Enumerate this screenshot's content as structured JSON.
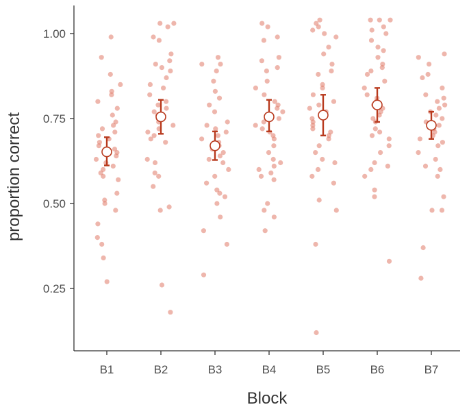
{
  "chart_data": {
    "type": "scatter",
    "xlabel": "Block",
    "ylabel": "proportion correct",
    "categories": [
      "B1",
      "B2",
      "B3",
      "B4",
      "B5",
      "B6",
      "B7"
    ],
    "yticks": [
      "0.25",
      "0.50",
      "0.75",
      "1.00"
    ],
    "ytick_values": [
      0.25,
      0.5,
      0.75,
      1.0
    ],
    "ylim": [
      0.1,
      1.08
    ],
    "grid": false,
    "point_color": "#e07a68",
    "error_color": "#b83a1e",
    "mean_fill": "#ffffff",
    "summary": [
      {
        "category": "B1",
        "mean": 0.652,
        "lower": 0.612,
        "upper": 0.695
      },
      {
        "category": "B2",
        "mean": 0.755,
        "lower": 0.705,
        "upper": 0.805
      },
      {
        "category": "B3",
        "mean": 0.67,
        "lower": 0.628,
        "upper": 0.712
      },
      {
        "category": "B4",
        "mean": 0.755,
        "lower": 0.712,
        "upper": 0.805
      },
      {
        "category": "B5",
        "mean": 0.76,
        "lower": 0.7,
        "upper": 0.82
      },
      {
        "category": "B6",
        "mean": 0.79,
        "lower": 0.74,
        "upper": 0.84
      },
      {
        "category": "B7",
        "mean": 0.73,
        "lower": 0.69,
        "upper": 0.77
      }
    ],
    "points": {
      "B1": [
        0.99,
        0.93,
        0.88,
        0.85,
        0.83,
        0.82,
        0.8,
        0.78,
        0.76,
        0.74,
        0.73,
        0.72,
        0.71,
        0.7,
        0.69,
        0.68,
        0.67,
        0.66,
        0.65,
        0.64,
        0.63,
        0.62,
        0.61,
        0.6,
        0.59,
        0.58,
        0.57,
        0.53,
        0.51,
        0.5,
        0.48,
        0.44,
        0.4,
        0.38,
        0.34,
        0.27
      ],
      "B2": [
        1.03,
        1.03,
        1.02,
        0.99,
        0.98,
        0.94,
        0.92,
        0.91,
        0.9,
        0.89,
        0.87,
        0.85,
        0.84,
        0.82,
        0.8,
        0.79,
        0.78,
        0.77,
        0.76,
        0.75,
        0.74,
        0.73,
        0.72,
        0.71,
        0.7,
        0.69,
        0.68,
        0.63,
        0.62,
        0.59,
        0.58,
        0.55,
        0.49,
        0.48,
        0.26,
        0.18
      ],
      "B3": [
        0.93,
        0.91,
        0.91,
        0.89,
        0.86,
        0.83,
        0.81,
        0.79,
        0.77,
        0.74,
        0.73,
        0.72,
        0.71,
        0.7,
        0.69,
        0.68,
        0.67,
        0.66,
        0.65,
        0.64,
        0.63,
        0.62,
        0.6,
        0.58,
        0.56,
        0.54,
        0.53,
        0.52,
        0.5,
        0.46,
        0.42,
        0.38,
        0.29
      ],
      "B4": [
        1.03,
        1.02,
        0.99,
        0.98,
        0.93,
        0.92,
        0.9,
        0.89,
        0.86,
        0.84,
        0.82,
        0.8,
        0.79,
        0.78,
        0.77,
        0.76,
        0.75,
        0.74,
        0.73,
        0.72,
        0.71,
        0.7,
        0.69,
        0.67,
        0.65,
        0.63,
        0.62,
        0.61,
        0.6,
        0.59,
        0.58,
        0.57,
        0.5,
        0.48,
        0.46,
        0.42
      ],
      "B5": [
        1.04,
        1.03,
        1.02,
        1.01,
        1.0,
        0.99,
        0.96,
        0.94,
        0.91,
        0.89,
        0.88,
        0.85,
        0.84,
        0.82,
        0.8,
        0.79,
        0.78,
        0.77,
        0.76,
        0.75,
        0.74,
        0.73,
        0.72,
        0.71,
        0.7,
        0.69,
        0.67,
        0.65,
        0.63,
        0.62,
        0.6,
        0.58,
        0.56,
        0.51,
        0.48,
        0.38,
        0.12
      ],
      "B6": [
        1.04,
        1.04,
        1.04,
        1.02,
        1.01,
        1.0,
        0.98,
        0.96,
        0.95,
        0.93,
        0.91,
        0.9,
        0.89,
        0.88,
        0.86,
        0.84,
        0.82,
        0.81,
        0.8,
        0.79,
        0.78,
        0.77,
        0.76,
        0.75,
        0.74,
        0.72,
        0.71,
        0.7,
        0.69,
        0.67,
        0.65,
        0.62,
        0.61,
        0.6,
        0.58,
        0.54,
        0.52,
        0.33
      ],
      "B7": [
        0.94,
        0.93,
        0.91,
        0.88,
        0.87,
        0.84,
        0.82,
        0.81,
        0.8,
        0.79,
        0.78,
        0.77,
        0.76,
        0.75,
        0.74,
        0.73,
        0.72,
        0.71,
        0.7,
        0.69,
        0.68,
        0.67,
        0.65,
        0.63,
        0.61,
        0.6,
        0.58,
        0.52,
        0.48,
        0.48,
        0.37,
        0.28
      ]
    }
  }
}
